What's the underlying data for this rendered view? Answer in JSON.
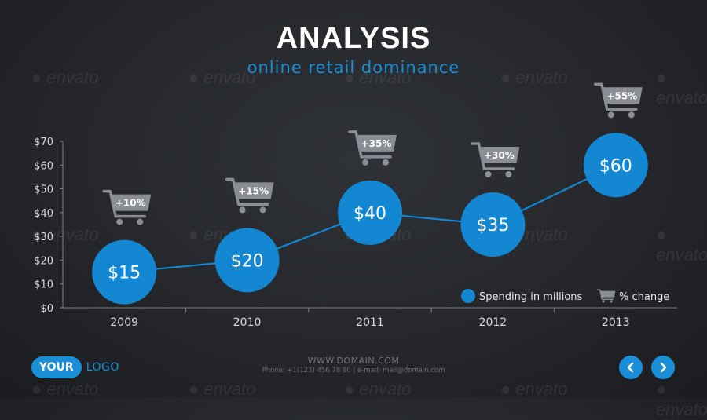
{
  "header": {
    "title": "ANALYSIS",
    "subtitle": "online retail dominance"
  },
  "colors": {
    "accent": "#1a8fd8",
    "circle": "#1387d1",
    "cart": "#8a8e94",
    "axis": "#7b7f85"
  },
  "chart_data": {
    "type": "line",
    "categories": [
      "2009",
      "2010",
      "2011",
      "2012",
      "2013"
    ],
    "series": [
      {
        "name": "Spending in millions",
        "values": [
          15,
          20,
          40,
          35,
          60
        ],
        "labels": [
          "$15",
          "$20",
          "$40",
          "$35",
          "$60"
        ]
      },
      {
        "name": "% change",
        "values": [
          10,
          15,
          35,
          30,
          55
        ],
        "labels": [
          "+10%",
          "+15%",
          "+35%",
          "+30%",
          "+55%"
        ]
      }
    ],
    "y_ticks": [
      "$0",
      "$10",
      "$20",
      "$30",
      "$40",
      "$50",
      "$60",
      "$70"
    ],
    "ylim": [
      0,
      70
    ],
    "legend_position": "bottom-right"
  },
  "legend": {
    "spending_label": "Spending in millions",
    "change_label": "% change",
    "cart_icon": "shopping-cart-icon"
  },
  "footer": {
    "url": "WWW.DOMAIN.COM",
    "contact": "Phone: +1(123) 456 78 90 | e-mail: mail@domain.com",
    "logo_pill": "YOUR",
    "logo_text": "LOGO"
  },
  "watermark": "envato",
  "nav": {
    "prev_icon": "chevron-left-icon",
    "next_icon": "chevron-right-icon"
  }
}
